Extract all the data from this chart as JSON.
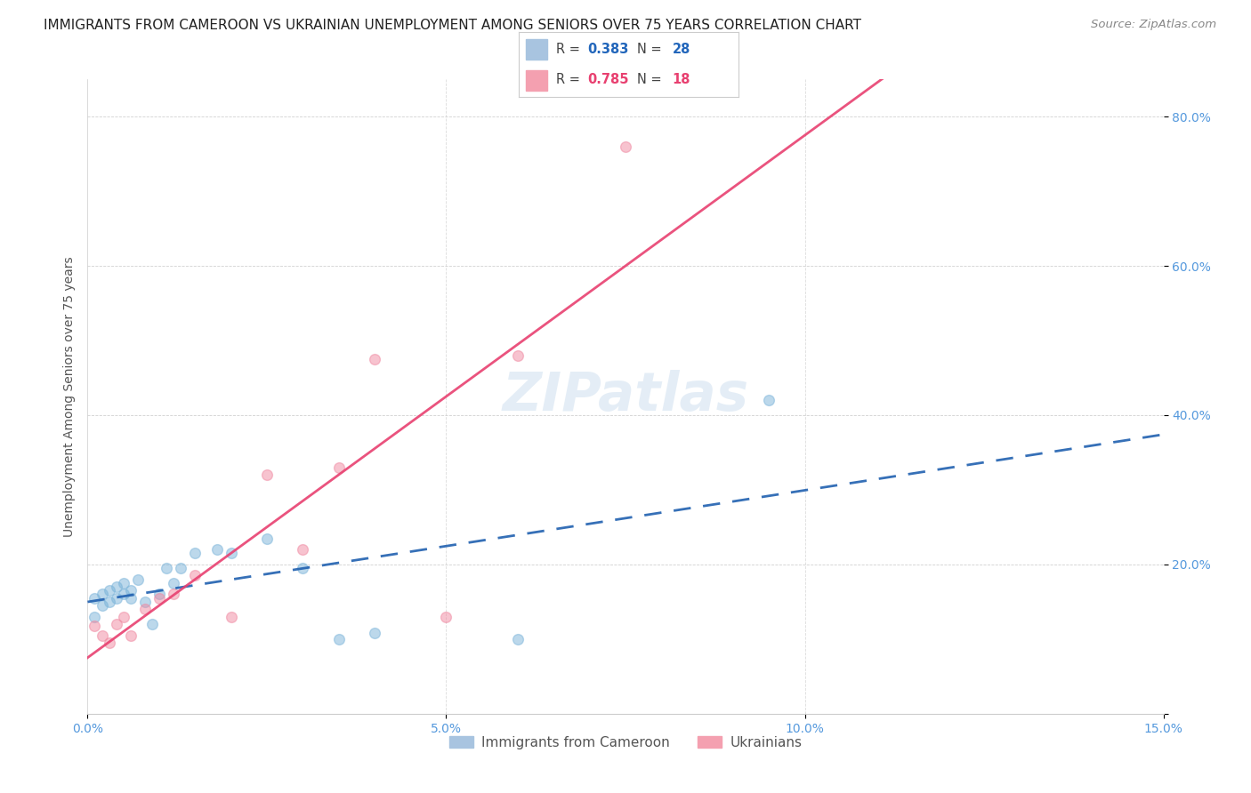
{
  "title": "IMMIGRANTS FROM CAMEROON VS UKRAINIAN UNEMPLOYMENT AMONG SENIORS OVER 75 YEARS CORRELATION CHART",
  "source": "Source: ZipAtlas.com",
  "ylabel": "Unemployment Among Seniors over 75 years",
  "watermark": "ZIPatlas",
  "r_cameroon": "0.383",
  "n_cameroon": "28",
  "r_ukrainian": "0.785",
  "n_ukrainian": "18",
  "xlim": [
    0.0,
    0.15
  ],
  "ylim": [
    0.0,
    0.85
  ],
  "ytick_vals": [
    0.0,
    0.2,
    0.4,
    0.6,
    0.8
  ],
  "xtick_vals": [
    0.0,
    0.05,
    0.1,
    0.15
  ],
  "cam_x": [
    0.001,
    0.001,
    0.002,
    0.002,
    0.003,
    0.003,
    0.004,
    0.004,
    0.005,
    0.005,
    0.006,
    0.006,
    0.007,
    0.008,
    0.009,
    0.01,
    0.011,
    0.012,
    0.013,
    0.015,
    0.018,
    0.02,
    0.025,
    0.03,
    0.035,
    0.04,
    0.06,
    0.095
  ],
  "cam_y": [
    0.155,
    0.13,
    0.16,
    0.145,
    0.15,
    0.165,
    0.155,
    0.17,
    0.175,
    0.16,
    0.165,
    0.155,
    0.18,
    0.15,
    0.12,
    0.16,
    0.195,
    0.175,
    0.195,
    0.215,
    0.22,
    0.215,
    0.235,
    0.195,
    0.1,
    0.108,
    0.1,
    0.42
  ],
  "ukr_x": [
    0.001,
    0.002,
    0.003,
    0.004,
    0.005,
    0.006,
    0.008,
    0.01,
    0.012,
    0.015,
    0.02,
    0.025,
    0.03,
    0.035,
    0.04,
    0.05,
    0.06,
    0.075
  ],
  "ukr_y": [
    0.118,
    0.105,
    0.095,
    0.12,
    0.13,
    0.105,
    0.14,
    0.155,
    0.16,
    0.185,
    0.13,
    0.32,
    0.22,
    0.33,
    0.475,
    0.13,
    0.48,
    0.76
  ],
  "cam_color": "#7ab3d9",
  "ukr_color": "#f088a0",
  "cam_line_color": "#2060b0",
  "ukr_line_color": "#e84070",
  "bg_color": "#ffffff",
  "grid_color": "#cccccc",
  "right_axis_color": "#5599dd",
  "title_fontsize": 11.0,
  "marker_size": 72,
  "legend_r_color_cam": "#2266bb",
  "legend_r_color_ukr": "#e84070",
  "legend_text_color": "#444444"
}
